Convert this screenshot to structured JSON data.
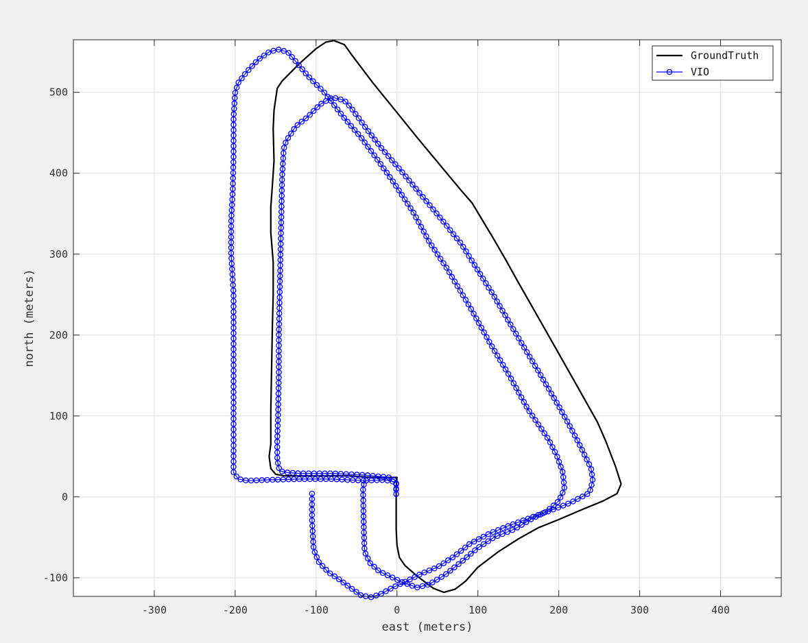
{
  "chart_data": {
    "type": "line",
    "title": "",
    "xlabel": "east (meters)",
    "ylabel": "north (meters)",
    "xlim": [
      -400,
      475
    ],
    "ylim": [
      -123,
      565
    ],
    "xticks": [
      -300,
      -200,
      -100,
      0,
      100,
      200,
      300,
      400
    ],
    "yticks": [
      -100,
      0,
      100,
      200,
      300,
      400,
      500
    ],
    "grid": true,
    "legend_position": "top-right",
    "series": [
      {
        "name": "GroundTruth",
        "color": "#000000",
        "marker": "none",
        "points": [
          [
            0,
            24
          ],
          [
            -1,
            10
          ],
          [
            -1,
            -40
          ],
          [
            0,
            -60
          ],
          [
            3,
            -75
          ],
          [
            10,
            -85
          ],
          [
            25,
            -98
          ],
          [
            45,
            -113
          ],
          [
            58,
            -118
          ],
          [
            72,
            -114
          ],
          [
            85,
            -104
          ],
          [
            100,
            -87
          ],
          [
            125,
            -68
          ],
          [
            150,
            -52
          ],
          [
            175,
            -38
          ],
          [
            200,
            -28
          ],
          [
            228,
            -16
          ],
          [
            255,
            -5
          ],
          [
            272,
            4
          ],
          [
            277,
            16
          ],
          [
            270,
            38
          ],
          [
            258,
            69
          ],
          [
            248,
            92
          ],
          [
            225,
            133
          ],
          [
            200,
            177
          ],
          [
            170,
            230
          ],
          [
            150,
            265
          ],
          [
            135,
            292
          ],
          [
            120,
            318
          ],
          [
            105,
            343
          ],
          [
            93,
            363
          ],
          [
            80,
            378
          ],
          [
            55,
            408
          ],
          [
            25,
            444
          ],
          [
            0,
            475
          ],
          [
            -30,
            512
          ],
          [
            -55,
            545
          ],
          [
            -65,
            559
          ],
          [
            -78,
            564
          ],
          [
            -88,
            562
          ],
          [
            -100,
            554
          ],
          [
            -120,
            536
          ],
          [
            -142,
            514
          ],
          [
            -148,
            505
          ],
          [
            -152,
            478
          ],
          [
            -153,
            455
          ],
          [
            -152,
            415
          ],
          [
            -154,
            385
          ],
          [
            -156,
            358
          ],
          [
            -156,
            327
          ],
          [
            -153,
            290
          ],
          [
            -153,
            250
          ],
          [
            -154,
            210
          ],
          [
            -155,
            160
          ],
          [
            -156,
            105
          ],
          [
            -156,
            65
          ],
          [
            -158,
            50
          ],
          [
            -156,
            35
          ],
          [
            -150,
            28
          ],
          [
            -140,
            26
          ],
          [
            -100,
            26
          ],
          [
            -60,
            26
          ],
          [
            -30,
            24
          ],
          [
            0,
            24
          ]
        ]
      },
      {
        "name": "VIO",
        "color": "#0000ff",
        "marker": "circle",
        "points": [
          [
            -105,
            4
          ],
          [
            -105,
            -30
          ],
          [
            -103,
            -65
          ],
          [
            -97,
            -80
          ],
          [
            -85,
            -93
          ],
          [
            -70,
            -103
          ],
          [
            -58,
            -112
          ],
          [
            -44,
            -122
          ],
          [
            -32,
            -124
          ],
          [
            -20,
            -120
          ],
          [
            -5,
            -112
          ],
          [
            10,
            -105
          ],
          [
            30,
            -95
          ],
          [
            50,
            -87
          ],
          [
            70,
            -74
          ],
          [
            90,
            -58
          ],
          [
            115,
            -45
          ],
          [
            140,
            -35
          ],
          [
            170,
            -24
          ],
          [
            195,
            -15
          ],
          [
            215,
            -7
          ],
          [
            238,
            5
          ],
          [
            242,
            20
          ],
          [
            240,
            35
          ],
          [
            228,
            60
          ],
          [
            215,
            85
          ],
          [
            200,
            112
          ],
          [
            175,
            155
          ],
          [
            148,
            200
          ],
          [
            120,
            248
          ],
          [
            100,
            280
          ],
          [
            80,
            312
          ],
          [
            55,
            343
          ],
          [
            30,
            373
          ],
          [
            5,
            403
          ],
          [
            -20,
            432
          ],
          [
            -40,
            458
          ],
          [
            -56,
            480
          ],
          [
            -65,
            490
          ],
          [
            -80,
            494
          ],
          [
            -95,
            485
          ],
          [
            -110,
            470
          ],
          [
            -125,
            458
          ],
          [
            -137,
            440
          ],
          [
            -140,
            430
          ],
          [
            -142,
            395
          ],
          [
            -143,
            345
          ],
          [
            -144,
            300
          ],
          [
            -145,
            250
          ],
          [
            -146,
            200
          ],
          [
            -146,
            150
          ],
          [
            -147,
            100
          ],
          [
            -148,
            70
          ],
          [
            -148,
            45
          ],
          [
            -145,
            32
          ],
          [
            -135,
            30
          ],
          [
            -120,
            29
          ],
          [
            -80,
            29
          ],
          [
            -40,
            27
          ],
          [
            -10,
            24
          ],
          [
            -1,
            20
          ],
          [
            -1,
            3
          ],
          [
            -1,
            18
          ],
          [
            -15,
            21
          ],
          [
            -40,
            20
          ],
          [
            -42,
            10
          ],
          [
            -41,
            -40
          ],
          [
            -40,
            -68
          ],
          [
            -33,
            -82
          ],
          [
            -22,
            -92
          ],
          [
            -5,
            -100
          ],
          [
            5,
            -105
          ],
          [
            25,
            -112
          ],
          [
            40,
            -108
          ],
          [
            60,
            -96
          ],
          [
            80,
            -80
          ],
          [
            100,
            -63
          ],
          [
            120,
            -50
          ],
          [
            145,
            -40
          ],
          [
            165,
            -28
          ],
          [
            185,
            -18
          ],
          [
            200,
            -5
          ],
          [
            207,
            10
          ],
          [
            205,
            30
          ],
          [
            198,
            50
          ],
          [
            188,
            70
          ],
          [
            180,
            82
          ],
          [
            162,
            108
          ],
          [
            140,
            148
          ],
          [
            115,
            190
          ],
          [
            90,
            235
          ],
          [
            62,
            282
          ],
          [
            40,
            315
          ],
          [
            20,
            352
          ],
          [
            -5,
            390
          ],
          [
            -25,
            418
          ],
          [
            -45,
            445
          ],
          [
            -65,
            468
          ],
          [
            -90,
            500
          ],
          [
            -110,
            520
          ],
          [
            -125,
            538
          ],
          [
            -135,
            550
          ],
          [
            -147,
            553
          ],
          [
            -158,
            550
          ],
          [
            -172,
            540
          ],
          [
            -186,
            525
          ],
          [
            -196,
            512
          ],
          [
            -200,
            500
          ],
          [
            -202,
            470
          ],
          [
            -202,
            420
          ],
          [
            -203,
            380
          ],
          [
            -205,
            340
          ],
          [
            -205,
            300
          ],
          [
            -202,
            250
          ],
          [
            -202,
            200
          ],
          [
            -202,
            150
          ],
          [
            -202,
            100
          ],
          [
            -202,
            60
          ],
          [
            -202,
            30
          ],
          [
            -196,
            22
          ],
          [
            -185,
            20
          ],
          [
            -160,
            21
          ],
          [
            -120,
            22
          ],
          [
            -80,
            22
          ],
          [
            -60,
            21
          ],
          [
            -40,
            20
          ]
        ]
      }
    ]
  }
}
